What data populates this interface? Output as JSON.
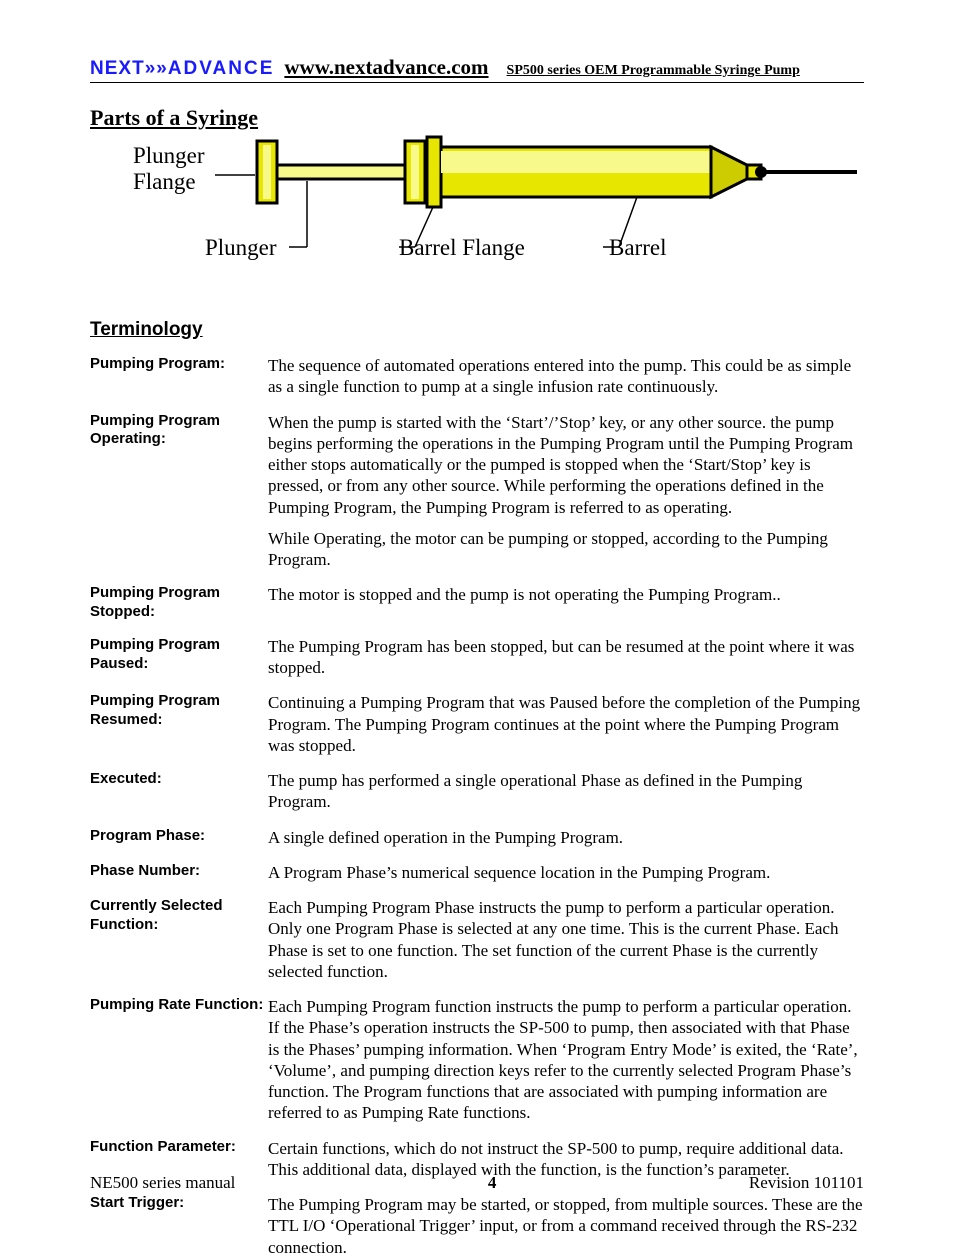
{
  "header": {
    "brand_prefix": "NEXT",
    "brand_arrows": "»»",
    "brand_suffix": "ADVANCE",
    "url": "www.nextadvance.com",
    "subtitle": "SP500 series OEM Programmable Syringe Pump"
  },
  "sections": {
    "parts_title": "Parts of a Syringe",
    "term_title": "Terminology"
  },
  "diagram": {
    "labels": {
      "plunger_flange_a": "Plunger",
      "plunger_flange_b": "Flange",
      "plunger": "Plunger",
      "barrel_flange": "Barrel Flange",
      "barrel": "Barrel"
    },
    "colors": {
      "outline": "#000000",
      "fill_light": "#f7f98a",
      "fill_mid": "#e6e600",
      "fill_dark": "#cccc00",
      "tip": "#000000"
    }
  },
  "terms": [
    {
      "label": "Pumping Program:",
      "paras": [
        "The sequence of automated operations entered into the pump.  This could be as simple as a single function to pump at a single infusion rate continuously."
      ]
    },
    {
      "label": "Pumping Program Operating:",
      "paras": [
        "When the pump is started with the ‘Start’/’Stop’ key, or any other source.  the pump begins performing the operations in the Pumping Program until the Pumping Program either stops automatically or the pumped is stopped when the ‘Start/Stop’ key is pressed, or from any other source.  While performing the operations defined in the Pumping Program, the Pumping Program is referred to as operating.",
        "While Operating, the motor can be pumping or stopped, according to the Pumping Program."
      ]
    },
    {
      "label": "Pumping Program Stopped:",
      "paras": [
        "The motor is stopped and the pump is not operating the Pumping Program.."
      ]
    },
    {
      "label": "Pumping Program Paused:",
      "paras": [
        "The Pumping Program has been stopped, but can be resumed at the point where it was stopped."
      ]
    },
    {
      "label": "Pumping Program Resumed:",
      "paras": [
        "Continuing a Pumping Program that was Paused  before the completion of the Pumping Program.  The Pumping Program continues at the point where the Pumping Program was stopped."
      ]
    },
    {
      "label": "Executed:",
      "paras": [
        "The pump has performed a single operational Phase as defined in the Pumping Program."
      ]
    },
    {
      "label": "Program Phase:",
      "paras": [
        "A single defined operation in the Pumping Program."
      ]
    },
    {
      "label": "Phase Number:",
      "paras": [
        "A Program Phase’s numerical sequence location in the Pumping Program."
      ]
    },
    {
      "label": "Currently Selected Function:",
      "paras": [
        "Each Pumping Program Phase instructs the pump to perform a particular operation.  Only one Program Phase is selected at any one time.  This is the current Phase.  Each Phase is set to one function.  The set function of the current Phase is the currently selected function."
      ]
    },
    {
      "label": "Pumping Rate Function:",
      "paras": [
        "Each Pumping Program function instructs the pump to perform a particular operation.  If the Phase’s operation instructs the SP-500 to pump, then associated with that Phase is the Phases’ pumping information.  When ‘Program Entry Mode’ is exited, the ‘Rate’, ‘Volume’, and pumping direction keys refer to the currently selected Program Phase’s function.  The Program functions that are associated with pumping information are referred to as Pumping Rate functions."
      ]
    },
    {
      "label": "Function Parameter:",
      "paras": [
        "Certain functions, which do not instruct the SP-500 to pump, require additional data.  This additional data, displayed with the function, is the function’s parameter."
      ]
    },
    {
      "label": "Start Trigger:",
      "paras": [
        "The Pumping Program may be started, or stopped, from multiple sources.  These are the TTL I/O ‘Operational Trigger’ input, or from a command received through the RS-232 connection."
      ]
    }
  ],
  "footer": {
    "left": "NE500 series manual",
    "page": "4",
    "right": "Revision 101101"
  }
}
